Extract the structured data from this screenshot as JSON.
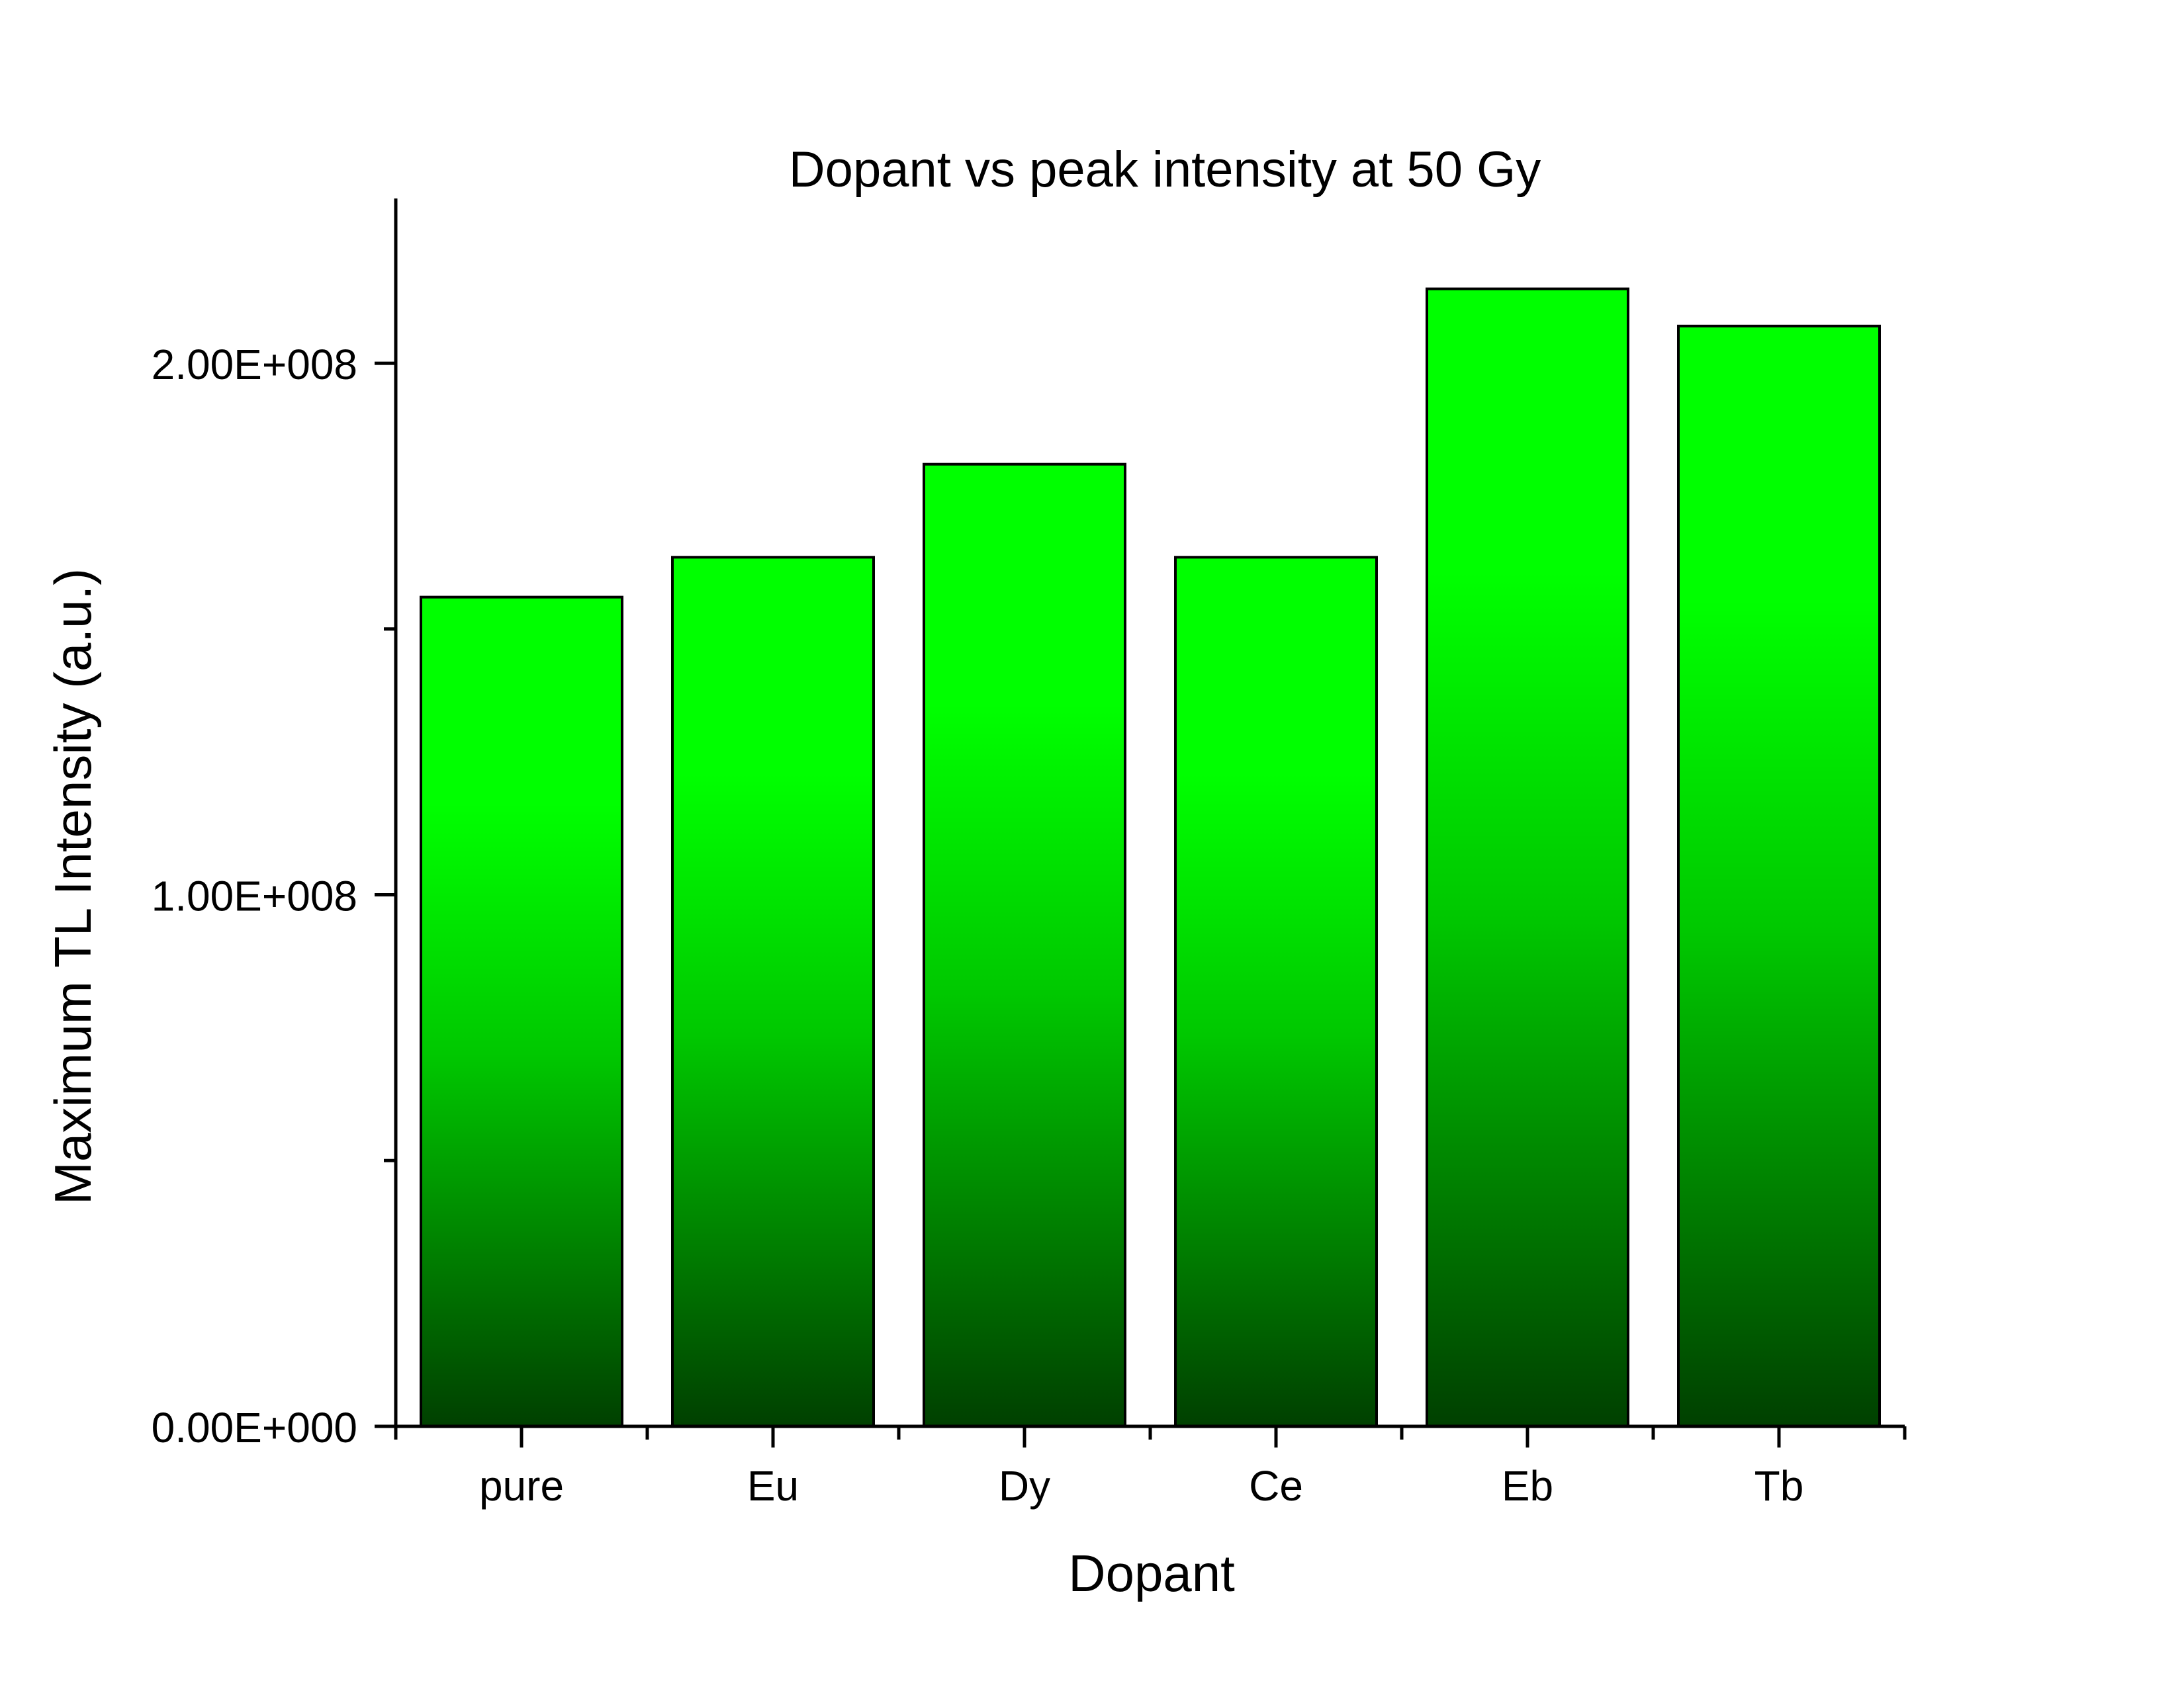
{
  "chart_data": {
    "type": "bar",
    "title": "Dopant vs peak intensity at 50 Gy",
    "xlabel": "Dopant",
    "ylabel": "Maximum TL Intensity (a.u.)",
    "categories": [
      "pure",
      "Eu",
      "Dy",
      "Ce",
      "Eb",
      "Tb"
    ],
    "values": [
      156000000,
      163500000,
      181000000,
      163500000,
      214000000,
      207000000
    ],
    "ylim": [
      0,
      231000000
    ],
    "y_ticks": [
      {
        "value": 0,
        "label": "0.00E+000"
      },
      {
        "value": 100000000,
        "label": "1.00E+008"
      },
      {
        "value": 200000000,
        "label": "2.00E+008"
      }
    ],
    "y_minor_ticks": [
      50000000,
      150000000
    ],
    "grid": false,
    "legend": "none",
    "colors": {
      "bar_top": "#00ff00",
      "bar_mid": "#00c800",
      "bar_bottom": "#004000",
      "bar_outline": "#000000",
      "axis": "#000000"
    }
  }
}
